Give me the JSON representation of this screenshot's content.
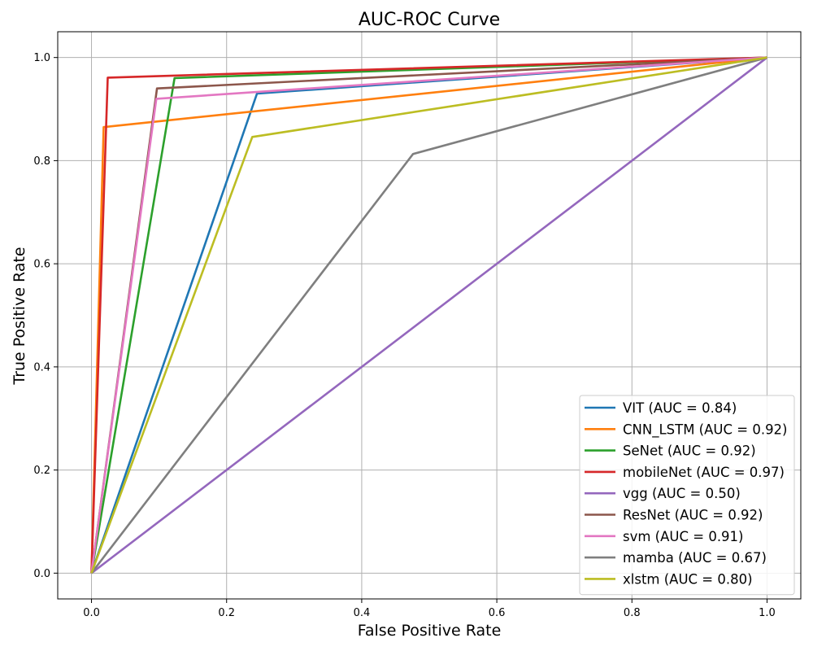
{
  "chart_data": {
    "type": "line",
    "title": "AUC-ROC Curve",
    "xlabel": "False Positive Rate",
    "ylabel": "True Positive Rate",
    "xlim": [
      -0.05,
      1.05
    ],
    "ylim": [
      -0.05,
      1.05
    ],
    "grid": true,
    "legend_position": "bottom-right",
    "xticks": [
      0.0,
      0.2,
      0.4,
      0.6,
      0.8,
      1.0
    ],
    "yticks": [
      0.0,
      0.2,
      0.4,
      0.6,
      0.8,
      1.0
    ],
    "xtick_labels": [
      "0.0",
      "0.2",
      "0.4",
      "0.6",
      "0.8",
      "1.0"
    ],
    "ytick_labels": [
      "0.0",
      "0.2",
      "0.4",
      "0.6",
      "0.8",
      "1.0"
    ],
    "series": [
      {
        "name": "VIT (AUC = 0.84)",
        "color": "#1f77b4",
        "x": [
          0,
          0.245,
          1
        ],
        "y": [
          0,
          0.93,
          1
        ]
      },
      {
        "name": "CNN_LSTM (AUC = 0.92)",
        "color": "#ff7f0e",
        "x": [
          0,
          0.018,
          1
        ],
        "y": [
          0,
          0.865,
          1
        ]
      },
      {
        "name": "SeNet (AUC = 0.92)",
        "color": "#2ca02c",
        "x": [
          0,
          0.123,
          1
        ],
        "y": [
          0,
          0.96,
          1
        ]
      },
      {
        "name": "mobileNet (AUC = 0.97)",
        "color": "#d62728",
        "x": [
          0,
          0.024,
          1
        ],
        "y": [
          0,
          0.961,
          1
        ]
      },
      {
        "name": "vgg (AUC = 0.50)",
        "color": "#9467bd",
        "x": [
          0,
          1
        ],
        "y": [
          0,
          1
        ]
      },
      {
        "name": "ResNet (AUC = 0.92)",
        "color": "#8c564b",
        "x": [
          0,
          0.097,
          1
        ],
        "y": [
          0,
          0.94,
          1
        ]
      },
      {
        "name": "svm (AUC = 0.91)",
        "color": "#e377c2",
        "x": [
          0,
          0.096,
          1
        ],
        "y": [
          0,
          0.92,
          1
        ]
      },
      {
        "name": "mamba (AUC = 0.67)",
        "color": "#7f7f7f",
        "x": [
          0,
          0.476,
          1
        ],
        "y": [
          0,
          0.813,
          1
        ]
      },
      {
        "name": "xlstm (AUC = 0.80)",
        "color": "#bcbd22",
        "x": [
          0,
          0.238,
          1
        ],
        "y": [
          0,
          0.846,
          1
        ]
      }
    ]
  }
}
